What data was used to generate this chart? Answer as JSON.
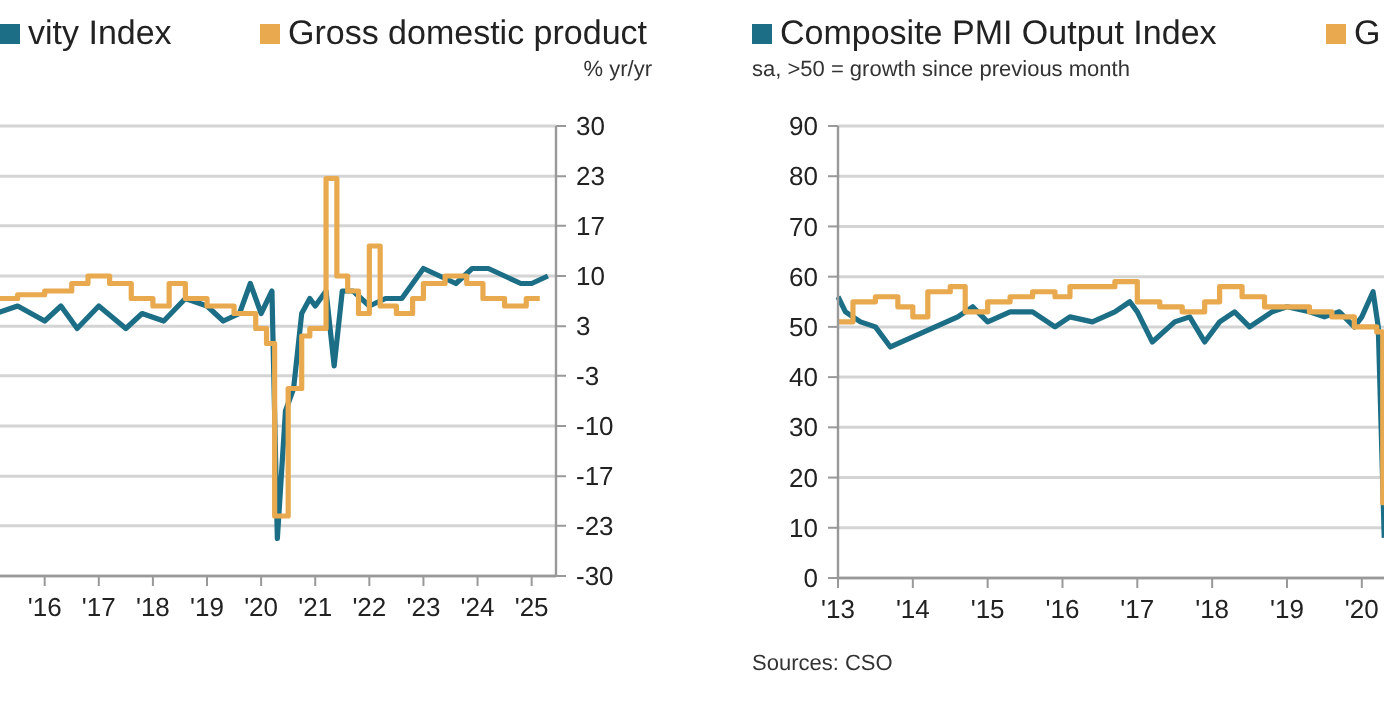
{
  "chart_data": [
    {
      "type": "line",
      "ylabel": "% yr/yr",
      "xlim": [
        2015.1,
        2025.45
      ],
      "xticks": [
        {
          "value": 2016,
          "label": "'16"
        },
        {
          "value": 2017,
          "label": "'17"
        },
        {
          "value": 2018,
          "label": "'18"
        },
        {
          "value": 2019,
          "label": "'19"
        },
        {
          "value": 2020,
          "label": "'20"
        },
        {
          "value": 2021,
          "label": "'21"
        },
        {
          "value": 2022,
          "label": "'22"
        },
        {
          "value": 2023,
          "label": "'23"
        },
        {
          "value": 2024,
          "label": "'24"
        },
        {
          "value": 2025,
          "label": "'25"
        }
      ],
      "ylim": [
        -30,
        30
      ],
      "yticks": [
        {
          "value": 30,
          "label": "30"
        },
        {
          "value": 23.3,
          "label": "23"
        },
        {
          "value": 16.7,
          "label": "17"
        },
        {
          "value": 10,
          "label": "10"
        },
        {
          "value": 3.3,
          "label": "3"
        },
        {
          "value": -3.3,
          "label": "-3"
        },
        {
          "value": -10,
          "label": "-10"
        },
        {
          "value": -16.7,
          "label": "-17"
        },
        {
          "value": -23.3,
          "label": "-23"
        },
        {
          "value": -30,
          "label": "-30"
        }
      ],
      "grid": "y",
      "legend": "top",
      "series": [
        {
          "name": "vity Index",
          "color": "#1b6e85",
          "x": [
            2015.1,
            2015.5,
            2016,
            2016.3,
            2016.6,
            2017,
            2017.5,
            2017.8,
            2018.2,
            2018.6,
            2019,
            2019.3,
            2019.6,
            2019.8,
            2020,
            2020.2,
            2020.3,
            2020.45,
            2020.6,
            2020.75,
            2020.9,
            2021,
            2021.2,
            2021.35,
            2021.5,
            2021.7,
            2022,
            2022.3,
            2022.6,
            2023,
            2023.3,
            2023.6,
            2023.9,
            2024.2,
            2024.5,
            2024.8,
            2025,
            2025.3
          ],
          "values": [
            5,
            6,
            4,
            6,
            3,
            6,
            3,
            5,
            4,
            7,
            6,
            4,
            5,
            9,
            5,
            8,
            -25,
            -8,
            -5,
            5,
            7,
            6,
            8,
            -2,
            8,
            8,
            6,
            7,
            7,
            11,
            10,
            9,
            11,
            11,
            10,
            9,
            9,
            10
          ]
        },
        {
          "name": "Gross domestic product",
          "type": "step",
          "color": "#e8a94f",
          "x": [
            2015.1,
            2015.5,
            2016,
            2016.5,
            2016.8,
            2017.2,
            2017.6,
            2018,
            2018.3,
            2018.6,
            2019,
            2019.5,
            2019.9,
            2020.1,
            2020.25,
            2020.5,
            2020.75,
            2020.9,
            2021.2,
            2021.4,
            2021.6,
            2021.8,
            2022,
            2022.2,
            2022.5,
            2022.8,
            2023,
            2023.4,
            2023.8,
            2024.1,
            2024.5,
            2024.9,
            2025.15
          ],
          "values": [
            7,
            7.5,
            8,
            9,
            10,
            9,
            7,
            6,
            9,
            7,
            6,
            5,
            3,
            1,
            -22,
            -5,
            2,
            3,
            23,
            10,
            8,
            5,
            14,
            6,
            5,
            7,
            9,
            10,
            9,
            7,
            6,
            7,
            7
          ]
        }
      ]
    },
    {
      "type": "line",
      "subtitle": "sa, >50 = growth since previous month",
      "annotations": [
        "Sources: CSO"
      ],
      "xlim": [
        2013,
        2020.35
      ],
      "xticks": [
        {
          "value": 2013,
          "label": "'13"
        },
        {
          "value": 2014,
          "label": "'14"
        },
        {
          "value": 2015,
          "label": "'15"
        },
        {
          "value": 2016,
          "label": "'16"
        },
        {
          "value": 2017,
          "label": "'17"
        },
        {
          "value": 2018,
          "label": "'18"
        },
        {
          "value": 2019,
          "label": "'19"
        },
        {
          "value": 2020,
          "label": "'20"
        }
      ],
      "ylim": [
        0,
        90
      ],
      "yticks": [
        0,
        10,
        20,
        30,
        40,
        50,
        60,
        70,
        80,
        90
      ],
      "grid": "y",
      "legend": "top",
      "series": [
        {
          "name": "Composite PMI Output Index",
          "color": "#1b6e85",
          "x": [
            2013,
            2013.1,
            2013.3,
            2013.5,
            2013.7,
            2014,
            2014.3,
            2014.6,
            2014.8,
            2015,
            2015.3,
            2015.6,
            2015.9,
            2016.1,
            2016.4,
            2016.7,
            2016.9,
            2017,
            2017.2,
            2017.5,
            2017.7,
            2017.9,
            2018.1,
            2018.3,
            2018.5,
            2018.8,
            2019,
            2019.3,
            2019.5,
            2019.7,
            2019.9,
            2020,
            2020.15,
            2020.22,
            2020.3
          ],
          "values": [
            56,
            53,
            51,
            50,
            46,
            48,
            50,
            52,
            54,
            51,
            53,
            53,
            50,
            52,
            51,
            53,
            55,
            53,
            47,
            51,
            52,
            47,
            51,
            53,
            50,
            53,
            54,
            53,
            52,
            53,
            50,
            52,
            57,
            50,
            8
          ]
        },
        {
          "name": "G",
          "type": "step",
          "color": "#e8a94f",
          "x": [
            2013,
            2013.2,
            2013.5,
            2013.8,
            2014,
            2014.2,
            2014.5,
            2014.7,
            2015,
            2015.3,
            2015.6,
            2015.9,
            2016.1,
            2016.4,
            2016.7,
            2017,
            2017.3,
            2017.6,
            2017.9,
            2018.1,
            2018.4,
            2018.7,
            2019,
            2019.3,
            2019.6,
            2019.9,
            2020.2,
            2020.28,
            2020.35
          ],
          "values": [
            51,
            55,
            56,
            54,
            52,
            57,
            58,
            53,
            55,
            56,
            57,
            56,
            58,
            58,
            59,
            55,
            54,
            53,
            55,
            58,
            56,
            54,
            54,
            53,
            52,
            50,
            49,
            15,
            15
          ]
        }
      ]
    }
  ]
}
